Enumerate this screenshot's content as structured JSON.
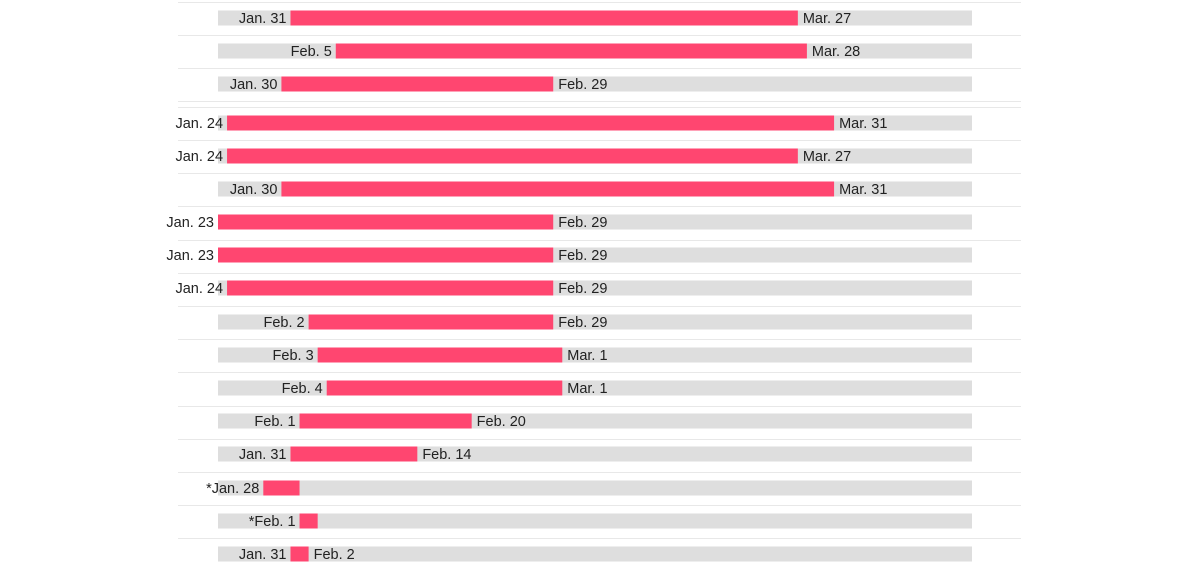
{
  "chart_data": {
    "type": "bar",
    "subtype": "range-gantt",
    "x_axis": {
      "unit": "date",
      "min": "2020-01-23",
      "max": "2020-04-15",
      "grid": false
    },
    "legend": null,
    "colors": {
      "range_bar": "#ff4670",
      "track": "#dedede",
      "divider": "#e8e8e8",
      "text": "#222222"
    },
    "rows": [
      {
        "start": "2020-01-31",
        "end": "2020-03-27",
        "start_label": "Jan. 31",
        "end_label": "Mar. 27"
      },
      {
        "start": "2020-02-05",
        "end": "2020-03-28",
        "start_label": "Feb. 5",
        "end_label": "Mar. 28"
      },
      {
        "start": "2020-01-30",
        "end": "2020-02-29",
        "start_label": "Jan. 30",
        "end_label": "Feb. 29"
      },
      {
        "start": "2020-01-24",
        "end": "2020-03-31",
        "start_label": "Jan. 24",
        "end_label": "Mar. 31"
      },
      {
        "start": "2020-01-24",
        "end": "2020-03-27",
        "start_label": "Jan. 24",
        "end_label": "Mar. 27"
      },
      {
        "start": "2020-01-30",
        "end": "2020-03-31",
        "start_label": "Jan. 30",
        "end_label": "Mar. 31"
      },
      {
        "start": "2020-01-23",
        "end": "2020-02-29",
        "start_label": "Jan. 23",
        "end_label": "Feb. 29"
      },
      {
        "start": "2020-01-23",
        "end": "2020-02-29",
        "start_label": "Jan. 23",
        "end_label": "Feb. 29"
      },
      {
        "start": "2020-01-24",
        "end": "2020-02-29",
        "start_label": "Jan. 24",
        "end_label": "Feb. 29"
      },
      {
        "start": "2020-02-02",
        "end": "2020-02-29",
        "start_label": "Feb. 2",
        "end_label": "Feb. 29"
      },
      {
        "start": "2020-02-03",
        "end": "2020-03-01",
        "start_label": "Feb. 3",
        "end_label": "Mar. 1"
      },
      {
        "start": "2020-02-04",
        "end": "2020-03-01",
        "start_label": "Feb. 4",
        "end_label": "Mar. 1"
      },
      {
        "start": "2020-02-01",
        "end": "2020-02-20",
        "start_label": "Feb. 1",
        "end_label": "Feb. 20"
      },
      {
        "start": "2020-01-31",
        "end": "2020-02-14",
        "start_label": "Jan. 31",
        "end_label": "Feb. 14"
      },
      {
        "start": "2020-01-28",
        "end": "2020-02-01",
        "start_label": "*Jan. 28",
        "end_label": ""
      },
      {
        "start": "2020-02-01",
        "end": "2020-02-03",
        "start_label": "*Feb. 1",
        "end_label": ""
      },
      {
        "start": "2020-01-31",
        "end": "2020-02-02",
        "start_label": "Jan. 31",
        "end_label": "Feb. 2"
      }
    ]
  }
}
